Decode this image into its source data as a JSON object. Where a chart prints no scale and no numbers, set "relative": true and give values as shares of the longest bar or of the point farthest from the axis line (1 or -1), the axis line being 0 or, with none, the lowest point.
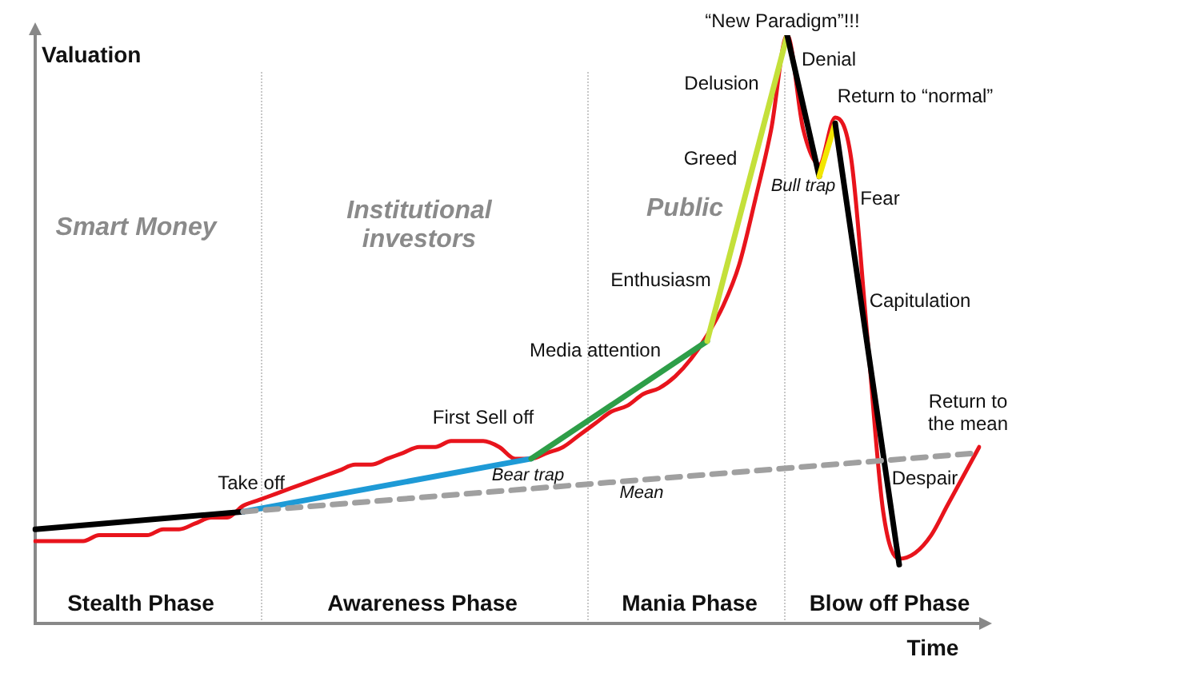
{
  "chart_data": {
    "type": "line",
    "relative": true,
    "xlabel": "Time",
    "ylabel": "Valuation",
    "categories": [
      null,
      null,
      null,
      null,
      null,
      null,
      null,
      null,
      null,
      null,
      null,
      null,
      null,
      null,
      null,
      null,
      null,
      null,
      null,
      null,
      null,
      null,
      null,
      null,
      null,
      null,
      null,
      null,
      null,
      null,
      null,
      null,
      null,
      null,
      null,
      null,
      null,
      null,
      null,
      null,
      null,
      null,
      null,
      null,
      null,
      null,
      null,
      null,
      null,
      null,
      null,
      null,
      null,
      null,
      null,
      null,
      null,
      null,
      null,
      null
    ],
    "series": [
      {
        "color": "#e8141c",
        "values": [
          0.14,
          0.14,
          0.14,
          0.14,
          0.15,
          0.15,
          0.15,
          0.15,
          0.16,
          0.16,
          0.17,
          0.18,
          0.18,
          0.2,
          0.21,
          0.22,
          0.23,
          0.24,
          0.25,
          0.26,
          0.27,
          0.27,
          0.28,
          0.29,
          0.3,
          0.3,
          0.31,
          0.31,
          0.31,
          0.3,
          0.28,
          0.28,
          0.29,
          0.3,
          0.32,
          0.34,
          0.36,
          0.37,
          0.39,
          0.4,
          0.42,
          0.45,
          0.49,
          0.54,
          0.61,
          0.72,
          0.84,
          1,
          0.84,
          0.78,
          0.86,
          0.79,
          0.49,
          0.19,
          0.11,
          0.12,
          0.15,
          0.2,
          0.25,
          0.3
        ]
      },
      {
        "color": "#000000",
        "values": [
          0.16,
          null,
          null,
          null,
          null,
          null,
          null,
          null,
          null,
          null,
          null,
          null,
          null,
          0.19,
          null,
          null,
          null,
          null,
          null,
          null,
          null,
          null,
          null,
          null,
          null,
          null,
          null,
          null,
          null,
          null,
          null,
          null,
          null,
          null,
          null,
          null,
          null,
          null,
          null,
          null,
          null,
          null,
          null,
          null,
          null,
          null,
          null,
          null,
          null,
          null,
          null,
          null,
          null,
          null,
          null,
          null,
          null,
          null,
          null,
          null
        ]
      },
      {
        "color": "#1e9ad6",
        "values": [
          null,
          null,
          null,
          null,
          null,
          null,
          null,
          null,
          null,
          null,
          null,
          null,
          null,
          0.19,
          null,
          null,
          null,
          null,
          null,
          null,
          null,
          null,
          null,
          null,
          null,
          null,
          null,
          null,
          null,
          null,
          null,
          0.28,
          null,
          null,
          null,
          null,
          null,
          null,
          null,
          null,
          null,
          null,
          null,
          null,
          null,
          null,
          null,
          null,
          null,
          null,
          null,
          null,
          null,
          null,
          null,
          null,
          null,
          null,
          null,
          null
        ]
      },
      {
        "color": "#2e9e48",
        "values": [
          null,
          null,
          null,
          null,
          null,
          null,
          null,
          null,
          null,
          null,
          null,
          null,
          null,
          null,
          null,
          null,
          null,
          null,
          null,
          null,
          null,
          null,
          null,
          null,
          null,
          null,
          null,
          null,
          null,
          null,
          null,
          0.28,
          null,
          null,
          null,
          null,
          null,
          null,
          null,
          null,
          null,
          null,
          0.48,
          null,
          null,
          null,
          null,
          null,
          null,
          null,
          null,
          null,
          null,
          null,
          null,
          null,
          null,
          null,
          null,
          null
        ]
      },
      {
        "color": "#c4e03a",
        "values": [
          null,
          null,
          null,
          null,
          null,
          null,
          null,
          null,
          null,
          null,
          null,
          null,
          null,
          null,
          null,
          null,
          null,
          null,
          null,
          null,
          null,
          null,
          null,
          null,
          null,
          null,
          null,
          null,
          null,
          null,
          null,
          null,
          null,
          null,
          null,
          null,
          null,
          null,
          null,
          null,
          null,
          null,
          0.48,
          null,
          null,
          null,
          null,
          1,
          null,
          null,
          null,
          null,
          null,
          null,
          null,
          null,
          null,
          null,
          null,
          null
        ]
      },
      {
        "color": "#000000",
        "values": [
          null,
          null,
          null,
          null,
          null,
          null,
          null,
          null,
          null,
          null,
          null,
          null,
          null,
          null,
          null,
          null,
          null,
          null,
          null,
          null,
          null,
          null,
          null,
          null,
          null,
          null,
          null,
          null,
          null,
          null,
          null,
          null,
          null,
          null,
          null,
          null,
          null,
          null,
          null,
          null,
          null,
          null,
          null,
          null,
          null,
          null,
          null,
          1,
          null,
          0.76,
          null,
          null,
          null,
          null,
          null,
          null,
          null,
          null,
          null,
          null
        ]
      },
      {
        "color": "#f2e600",
        "values": [
          null,
          null,
          null,
          null,
          null,
          null,
          null,
          null,
          null,
          null,
          null,
          null,
          null,
          null,
          null,
          null,
          null,
          null,
          null,
          null,
          null,
          null,
          null,
          null,
          null,
          null,
          null,
          null,
          null,
          null,
          null,
          null,
          null,
          null,
          null,
          null,
          null,
          null,
          null,
          null,
          null,
          null,
          null,
          null,
          null,
          null,
          null,
          null,
          null,
          0.76,
          0.85,
          null,
          null,
          null,
          null,
          null,
          null,
          null,
          null,
          null
        ]
      },
      {
        "color": "#000000",
        "values": [
          null,
          null,
          null,
          null,
          null,
          null,
          null,
          null,
          null,
          null,
          null,
          null,
          null,
          null,
          null,
          null,
          null,
          null,
          null,
          null,
          null,
          null,
          null,
          null,
          null,
          null,
          null,
          null,
          null,
          null,
          null,
          null,
          null,
          null,
          null,
          null,
          null,
          null,
          null,
          null,
          null,
          null,
          null,
          null,
          null,
          null,
          null,
          null,
          null,
          null,
          0.85,
          null,
          null,
          null,
          0.1,
          null,
          null,
          null,
          null,
          null
        ]
      },
      {
        "color": "#a0a0a0",
        "line_style": "dashed",
        "values": [
          null,
          null,
          null,
          null,
          null,
          null,
          null,
          null,
          null,
          null,
          null,
          null,
          null,
          0.19,
          null,
          null,
          null,
          null,
          null,
          null,
          null,
          null,
          null,
          null,
          null,
          null,
          null,
          null,
          null,
          null,
          null,
          null,
          null,
          null,
          null,
          null,
          null,
          null,
          null,
          null,
          null,
          null,
          null,
          null,
          null,
          null,
          null,
          null,
          null,
          null,
          null,
          null,
          null,
          null,
          null,
          null,
          null,
          null,
          null,
          0.29
        ]
      }
    ],
    "annotations": [
      "Smart Money",
      "Institutional\ninvestors",
      "Public",
      "Take off",
      "First Sell off",
      "Bear trap",
      "Media attention",
      "Enthusiasm",
      "Greed",
      "Delusion",
      "“New Paradigm”!!!",
      "Denial",
      "Return to “normal”",
      "Bull trap",
      "Fear",
      "Capitulation",
      "Return to\nthe mean",
      "Despair",
      "Mean",
      "Stealth Phase",
      "Awareness Phase",
      "Mania Phase",
      "Blow off Phase"
    ]
  }
}
